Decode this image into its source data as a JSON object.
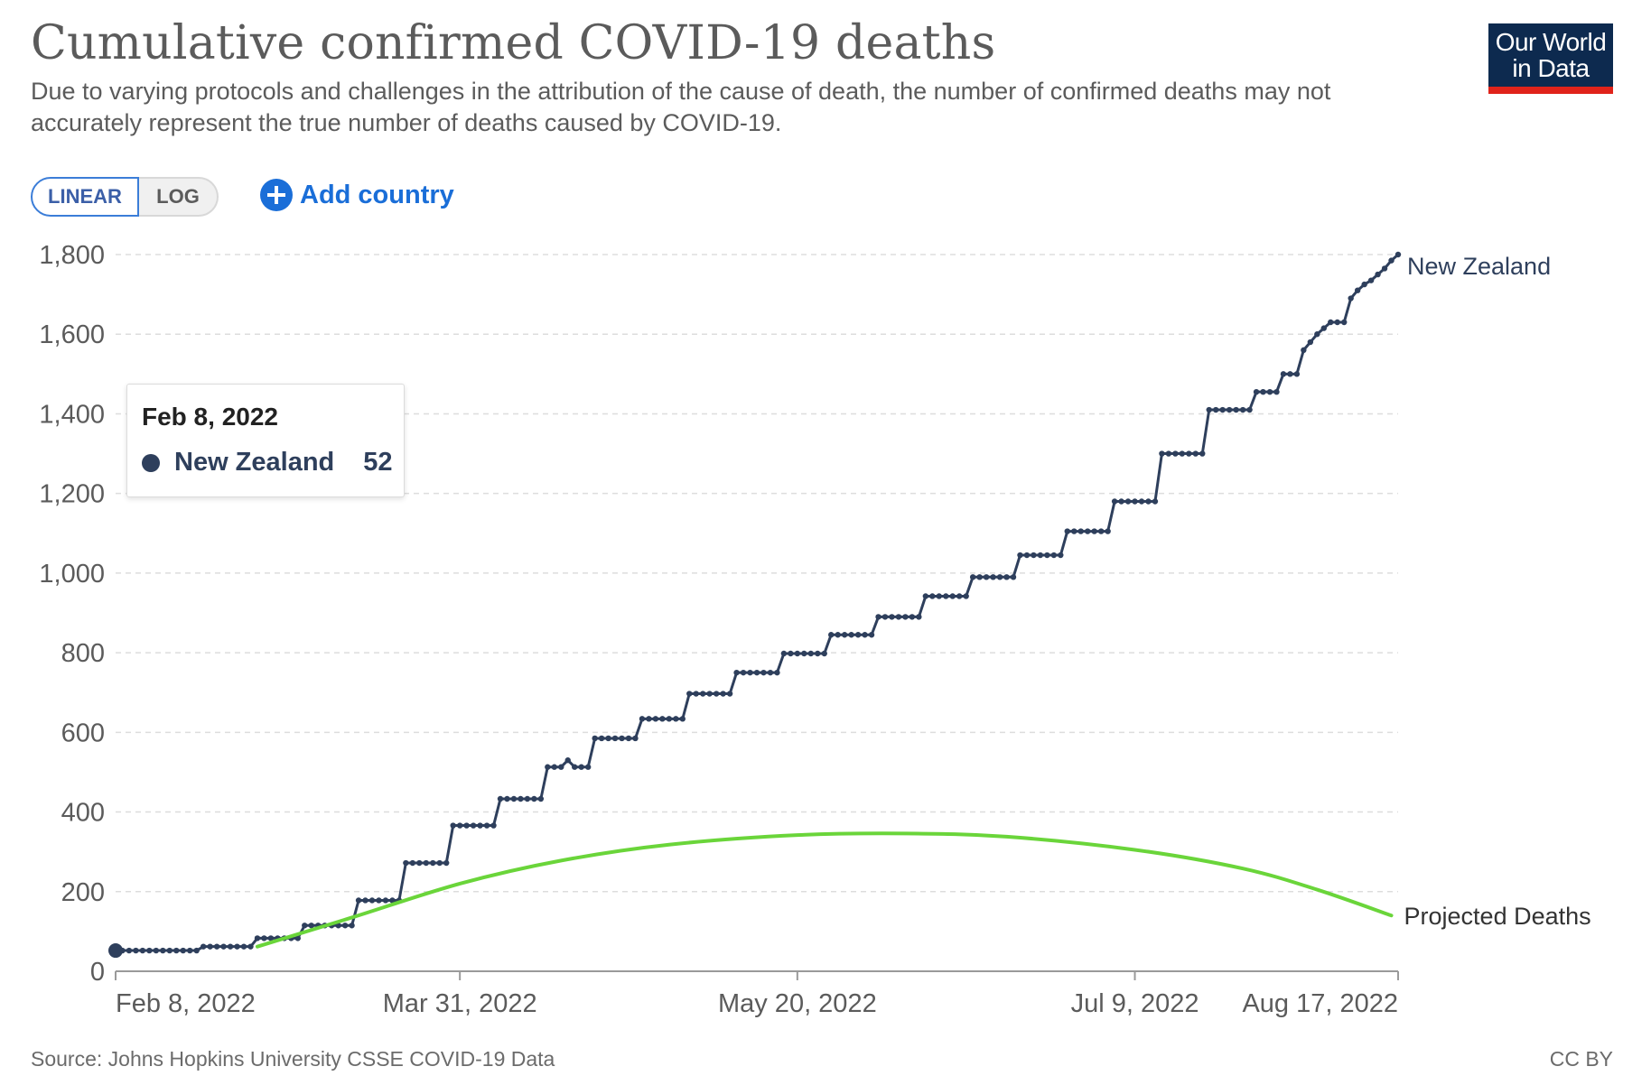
{
  "header": {
    "title": "Cumulative confirmed COVID-19 deaths",
    "subtitle": "Due to varying protocols and challenges in the attribution of the cause of death, the number of confirmed deaths may not accurately represent the true number of deaths caused by COVID-19."
  },
  "logo": {
    "line1": "Our World",
    "line2": "in Data",
    "bg": "#0d2a4f",
    "stripe": "#e0231a"
  },
  "controls": {
    "linear_label": "LINEAR",
    "log_label": "LOG",
    "add_country_label": "Add country"
  },
  "tooltip": {
    "date": "Feb 8, 2022",
    "country": "New Zealand",
    "value": "52"
  },
  "footer": {
    "source": "Source: Johns Hopkins University CSSE COVID-19 Data",
    "license": "CC BY"
  },
  "colors": {
    "nz_series": "#2e3f5c",
    "projected_series": "#6ad53a",
    "axis": "#9a9a9a",
    "grid": "#dddddd"
  },
  "chart_data": {
    "type": "line",
    "title": "Cumulative confirmed COVID-19 deaths",
    "xlabel": "",
    "ylabel": "",
    "ylim": [
      0,
      1800
    ],
    "xlim": [
      "2022-02-08",
      "2022-08-17"
    ],
    "grid": "horizontal dashed",
    "x_ticks": [
      "Feb 8, 2022",
      "Mar 31, 2022",
      "May 20, 2022",
      "Jul 9, 2022",
      "Aug 17, 2022"
    ],
    "x_tick_dates": [
      "2022-02-08",
      "2022-03-31",
      "2022-05-20",
      "2022-07-09",
      "2022-08-17"
    ],
    "y_ticks": [
      0,
      200,
      400,
      600,
      800,
      1000,
      1200,
      1400,
      1600,
      1800
    ],
    "y_tick_labels": [
      "0",
      "200",
      "400",
      "600",
      "800",
      "1,000",
      "1,200",
      "1,400",
      "1,600",
      "1,800"
    ],
    "series": [
      {
        "name": "New Zealand",
        "style": "step-dots",
        "points": [
          [
            "2022-02-08",
            52
          ],
          [
            "2022-02-20",
            52
          ],
          [
            "2022-02-21",
            62
          ],
          [
            "2022-02-28",
            62
          ],
          [
            "2022-03-01",
            83
          ],
          [
            "2022-03-07",
            83
          ],
          [
            "2022-03-08",
            115
          ],
          [
            "2022-03-15",
            115
          ],
          [
            "2022-03-16",
            178
          ],
          [
            "2022-03-22",
            178
          ],
          [
            "2022-03-23",
            272
          ],
          [
            "2022-03-29",
            272
          ],
          [
            "2022-03-30",
            366
          ],
          [
            "2022-04-05",
            366
          ],
          [
            "2022-04-06",
            433
          ],
          [
            "2022-04-12",
            433
          ],
          [
            "2022-04-13",
            513
          ],
          [
            "2022-04-15",
            513
          ],
          [
            "2022-04-16",
            530
          ],
          [
            "2022-04-17",
            513
          ],
          [
            "2022-04-19",
            513
          ],
          [
            "2022-04-20",
            585
          ],
          [
            "2022-04-26",
            585
          ],
          [
            "2022-04-27",
            634
          ],
          [
            "2022-05-03",
            634
          ],
          [
            "2022-05-04",
            697
          ],
          [
            "2022-05-10",
            697
          ],
          [
            "2022-05-11",
            750
          ],
          [
            "2022-05-17",
            750
          ],
          [
            "2022-05-18",
            798
          ],
          [
            "2022-05-24",
            798
          ],
          [
            "2022-05-25",
            845
          ],
          [
            "2022-05-31",
            845
          ],
          [
            "2022-06-01",
            890
          ],
          [
            "2022-06-07",
            890
          ],
          [
            "2022-06-08",
            942
          ],
          [
            "2022-06-14",
            942
          ],
          [
            "2022-06-15",
            990
          ],
          [
            "2022-06-21",
            990
          ],
          [
            "2022-06-22",
            1045
          ],
          [
            "2022-06-28",
            1045
          ],
          [
            "2022-06-29",
            1105
          ],
          [
            "2022-07-05",
            1105
          ],
          [
            "2022-07-06",
            1180
          ],
          [
            "2022-07-12",
            1180
          ],
          [
            "2022-07-13",
            1300
          ],
          [
            "2022-07-19",
            1300
          ],
          [
            "2022-07-20",
            1410
          ],
          [
            "2022-07-26",
            1410
          ],
          [
            "2022-07-27",
            1455
          ],
          [
            "2022-07-30",
            1455
          ],
          [
            "2022-07-31",
            1500
          ],
          [
            "2022-08-02",
            1500
          ],
          [
            "2022-08-03",
            1560
          ],
          [
            "2022-08-04",
            1580
          ],
          [
            "2022-08-05",
            1600
          ],
          [
            "2022-08-06",
            1615
          ],
          [
            "2022-08-07",
            1630
          ],
          [
            "2022-08-09",
            1630
          ],
          [
            "2022-08-10",
            1690
          ],
          [
            "2022-08-11",
            1710
          ],
          [
            "2022-08-12",
            1725
          ],
          [
            "2022-08-13",
            1735
          ],
          [
            "2022-08-14",
            1750
          ],
          [
            "2022-08-15",
            1765
          ],
          [
            "2022-08-16",
            1785
          ],
          [
            "2022-08-17",
            1800
          ]
        ]
      },
      {
        "name": "Projected Deaths",
        "style": "smooth-line",
        "points": [
          [
            "2022-03-01",
            62
          ],
          [
            "2022-03-15",
            135
          ],
          [
            "2022-03-31",
            220
          ],
          [
            "2022-04-15",
            278
          ],
          [
            "2022-05-01",
            318
          ],
          [
            "2022-05-20",
            342
          ],
          [
            "2022-06-05",
            346
          ],
          [
            "2022-06-20",
            338
          ],
          [
            "2022-07-09",
            305
          ],
          [
            "2022-07-25",
            258
          ],
          [
            "2022-08-05",
            205
          ],
          [
            "2022-08-16",
            140
          ]
        ]
      }
    ]
  }
}
